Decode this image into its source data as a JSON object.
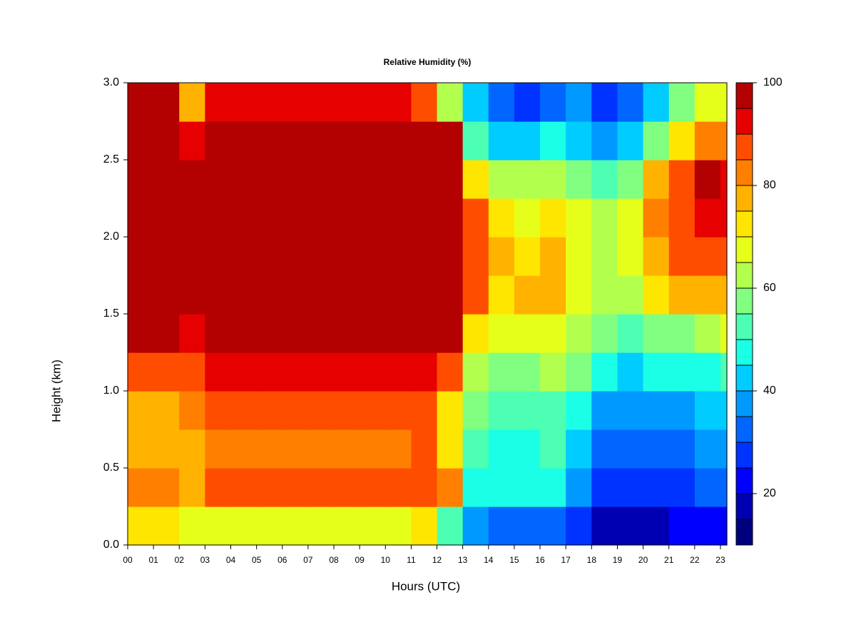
{
  "chart_data": {
    "type": "heatmap",
    "title": "Relative Humidity (%)",
    "xlabel": "Hours (UTC)",
    "ylabel": "Height (km)",
    "xlim": [
      0,
      23.25
    ],
    "ylim": [
      0,
      3.0
    ],
    "xticks": [
      {
        "value": 0,
        "label": "00"
      },
      {
        "value": 1,
        "label": "01"
      },
      {
        "value": 2,
        "label": "02"
      },
      {
        "value": 3,
        "label": "03"
      },
      {
        "value": 4,
        "label": "04"
      },
      {
        "value": 5,
        "label": "05"
      },
      {
        "value": 6,
        "label": "06"
      },
      {
        "value": 7,
        "label": "07"
      },
      {
        "value": 8,
        "label": "08"
      },
      {
        "value": 9,
        "label": "09"
      },
      {
        "value": 10,
        "label": "10"
      },
      {
        "value": 11,
        "label": "11"
      },
      {
        "value": 12,
        "label": "12"
      },
      {
        "value": 13,
        "label": "13"
      },
      {
        "value": 14,
        "label": "14"
      },
      {
        "value": 15,
        "label": "15"
      },
      {
        "value": 16,
        "label": "16"
      },
      {
        "value": 17,
        "label": "17"
      },
      {
        "value": 18,
        "label": "18"
      },
      {
        "value": 19,
        "label": "19"
      },
      {
        "value": 20,
        "label": "20"
      },
      {
        "value": 21,
        "label": "21"
      },
      {
        "value": 22,
        "label": "22"
      },
      {
        "value": 23,
        "label": "23"
      }
    ],
    "yticks": [
      {
        "value": 0,
        "label": "0.0"
      },
      0.5,
      {
        "value": 1,
        "label": "1.0"
      },
      1.5,
      {
        "value": 2,
        "label": "2.0"
      },
      2.5,
      {
        "value": 3,
        "label": "3.0"
      }
    ],
    "x": [
      0,
      1,
      2,
      3,
      4,
      5,
      6,
      7,
      8,
      9,
      10,
      11,
      12,
      13,
      14,
      15,
      16,
      17,
      18,
      19,
      20,
      21,
      22,
      23
    ],
    "y": [
      0,
      0.25,
      0.5,
      0.75,
      1.0,
      1.25,
      1.5,
      1.75,
      2.0,
      2.25,
      2.5,
      2.75
    ],
    "z": [
      [
        70,
        70,
        65,
        68,
        68,
        68,
        68,
        68,
        68,
        68,
        68,
        70,
        50,
        35,
        30,
        30,
        32,
        25,
        18,
        15,
        18,
        20,
        22,
        22
      ],
      [
        80,
        80,
        78,
        85,
        85,
        85,
        85,
        85,
        85,
        85,
        85,
        85,
        80,
        48,
        45,
        45,
        48,
        38,
        28,
        25,
        28,
        28,
        30,
        30
      ],
      [
        78,
        78,
        78,
        82,
        82,
        82,
        82,
        82,
        82,
        82,
        82,
        85,
        72,
        50,
        48,
        48,
        50,
        42,
        32,
        30,
        33,
        33,
        35,
        35
      ],
      [
        78,
        78,
        82,
        85,
        85,
        85,
        85,
        85,
        85,
        85,
        85,
        88,
        70,
        55,
        50,
        52,
        52,
        48,
        38,
        35,
        38,
        38,
        40,
        40
      ],
      [
        88,
        88,
        88,
        90,
        90,
        90,
        90,
        90,
        90,
        90,
        90,
        92,
        85,
        62,
        58,
        58,
        60,
        55,
        45,
        42,
        45,
        45,
        48,
        50
      ],
      [
        100,
        100,
        92,
        96,
        96,
        96,
        96,
        96,
        96,
        96,
        96,
        100,
        98,
        72,
        65,
        65,
        68,
        63,
        55,
        50,
        55,
        58,
        62,
        65
      ],
      [
        100,
        100,
        100,
        100,
        100,
        100,
        100,
        100,
        100,
        100,
        100,
        100,
        100,
        85,
        72,
        75,
        78,
        68,
        60,
        60,
        70,
        75,
        78,
        75
      ],
      [
        100,
        100,
        100,
        100,
        100,
        100,
        100,
        100,
        100,
        100,
        100,
        100,
        100,
        88,
        75,
        72,
        78,
        68,
        62,
        65,
        78,
        85,
        88,
        85
      ],
      [
        100,
        100,
        100,
        100,
        100,
        100,
        100,
        100,
        100,
        100,
        100,
        100,
        100,
        85,
        70,
        68,
        70,
        65,
        60,
        68,
        82,
        88,
        92,
        90
      ],
      [
        100,
        100,
        100,
        100,
        100,
        100,
        100,
        100,
        100,
        100,
        100,
        100,
        100,
        70,
        60,
        62,
        64,
        58,
        50,
        55,
        75,
        85,
        95,
        92
      ],
      [
        100,
        100,
        90,
        100,
        100,
        100,
        100,
        100,
        100,
        100,
        100,
        100,
        95,
        52,
        40,
        40,
        45,
        42,
        35,
        40,
        58,
        70,
        80,
        80
      ],
      [
        95,
        95,
        75,
        92,
        92,
        92,
        92,
        92,
        92,
        92,
        92,
        88,
        60,
        42,
        30,
        28,
        32,
        35,
        25,
        30,
        42,
        55,
        65,
        68
      ]
    ],
    "levels": [
      10,
      15,
      20,
      25,
      30,
      35,
      40,
      45,
      50,
      55,
      60,
      65,
      70,
      75,
      80,
      85,
      90,
      95,
      100
    ],
    "colors": [
      "#00007f",
      "#0000b2",
      "#0000ff",
      "#0033ff",
      "#0066ff",
      "#0099ff",
      "#00ccff",
      "#1affe6",
      "#4dffb3",
      "#80ff80",
      "#b3ff4d",
      "#e6ff1a",
      "#ffe600",
      "#ffb300",
      "#ff8000",
      "#ff4d00",
      "#e60000",
      "#b30000",
      "#7f0000"
    ],
    "colorbar_ticks": [
      20,
      40,
      60,
      80,
      100
    ]
  }
}
